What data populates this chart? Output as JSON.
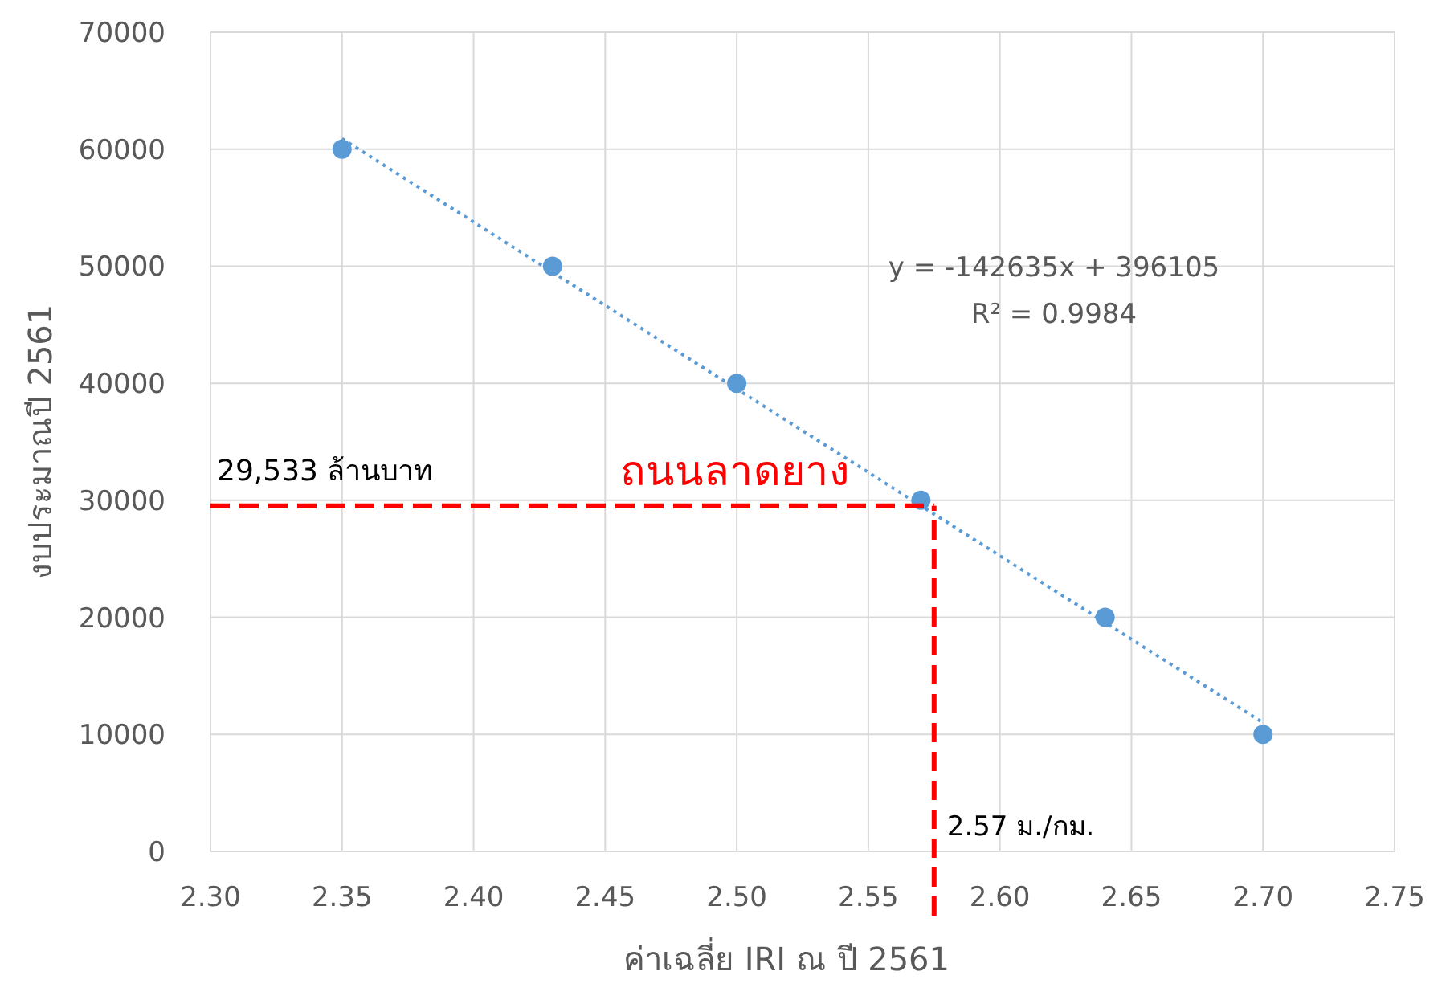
{
  "chart_data": {
    "type": "scatter",
    "xlabel": "ค่าเฉลี่ย IRI ณ ปี 2561",
    "ylabel": "งบประมาณปี 2561",
    "xlim": [
      2.3,
      2.75
    ],
    "xticks": [
      {
        "value": 2.3,
        "label": "2.30"
      },
      {
        "value": 2.35,
        "label": "2.35"
      },
      {
        "value": 2.4,
        "label": "2.40"
      },
      {
        "value": 2.45,
        "label": "2.45"
      },
      {
        "value": 2.5,
        "label": "2.50"
      },
      {
        "value": 2.55,
        "label": "2.55"
      },
      {
        "value": 2.6,
        "label": "2.60"
      },
      {
        "value": 2.65,
        "label": "2.65"
      },
      {
        "value": 2.7,
        "label": "2.70"
      },
      {
        "value": 2.75,
        "label": "2.75"
      }
    ],
    "ylim": [
      0,
      70000
    ],
    "yticks": [
      0,
      10000,
      20000,
      30000,
      40000,
      50000,
      60000,
      70000
    ],
    "grid": true,
    "marker": "circle",
    "series": [
      {
        "color": "#5b9bd5",
        "x": [
          2.35,
          2.43,
          2.5,
          2.57,
          2.64,
          2.7
        ],
        "values": [
          60000,
          50000,
          40000,
          30000,
          20000,
          10000
        ]
      },
      {
        "type": "line",
        "color": "#5b9bd5",
        "line_style": "dotted",
        "marker": "none",
        "x": [
          2.35,
          2.7
        ],
        "values": [
          60900,
          11000
        ]
      }
    ],
    "ref_lines": [
      {
        "axis": "y",
        "value": 29533,
        "label": "29,533 ล้านบาท",
        "color": "#ff0000",
        "line_style": "dashed"
      },
      {
        "axis": "x",
        "value": 2.575,
        "label": "2.57 ม./กม.",
        "color": "#ff0000",
        "line_style": "dashed"
      }
    ],
    "annotations": [
      "y = -142635x + 396105",
      "R² = 0.9984",
      "ถนนลาดยาง"
    ]
  }
}
